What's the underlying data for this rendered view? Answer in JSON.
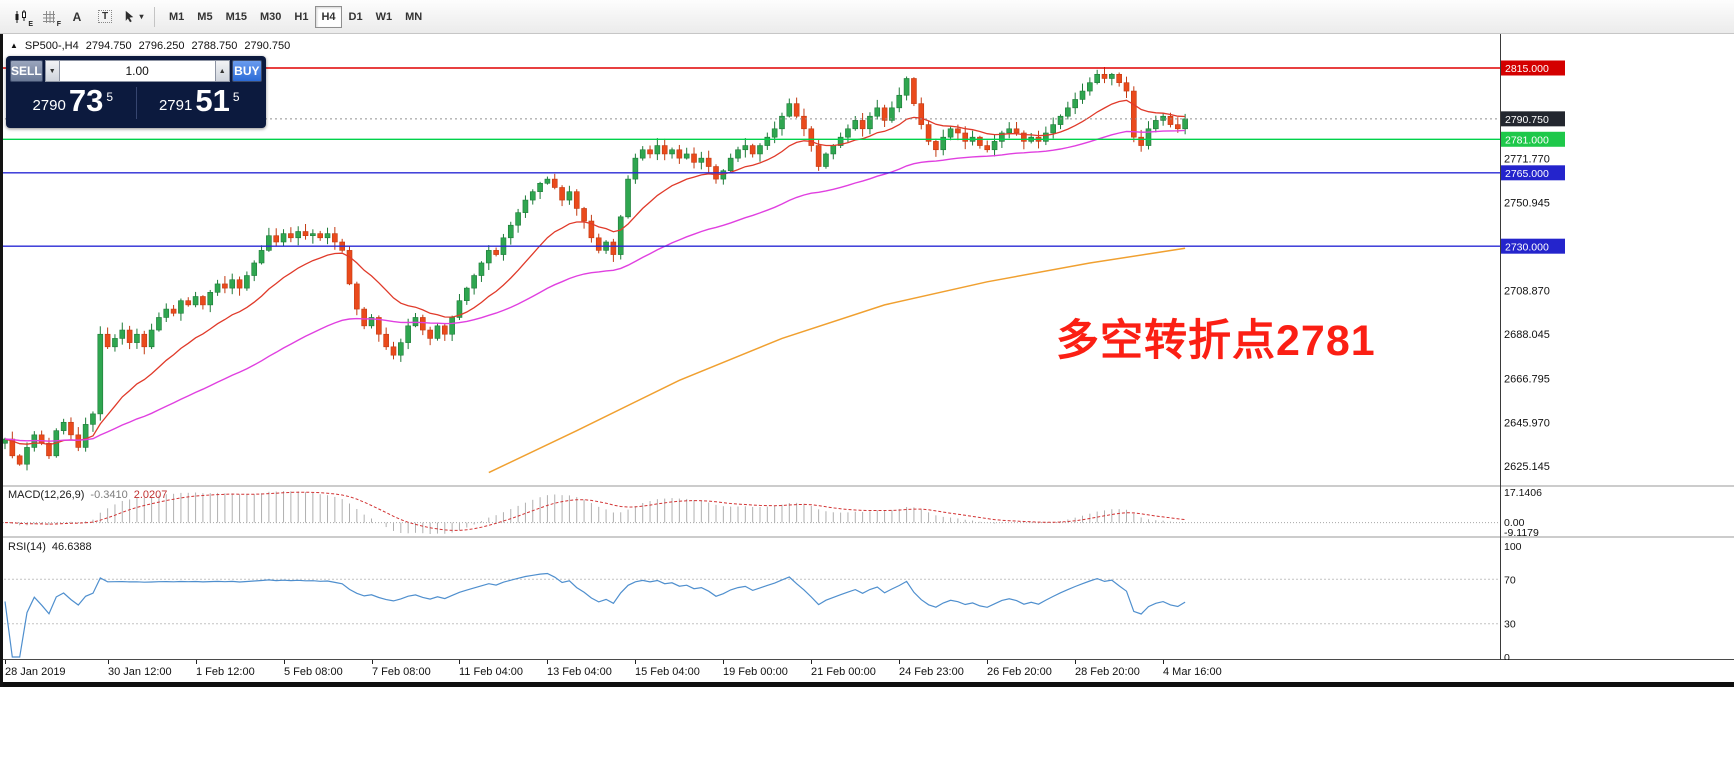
{
  "colors": {
    "sell_button": "#6b7a97",
    "buy_button": "#2b6bd7",
    "panel_bg": "#0c1a3e"
  },
  "toolbar": {
    "icon_subs": [
      "E",
      "F"
    ],
    "letter_a": "A",
    "letter_t": "T",
    "dropdown_caret": "▾",
    "timeframes": [
      "M1",
      "M5",
      "M15",
      "M30",
      "H1",
      "H4",
      "D1",
      "W1",
      "MN"
    ],
    "active_timeframe": "H4"
  },
  "chart_header": {
    "marker": "▲",
    "symbol": "SP500-,H4",
    "open": "2794.750",
    "high": "2796.250",
    "low": "2788.750",
    "close": "2790.750"
  },
  "trade_panel": {
    "sell_label": "SELL",
    "buy_label": "BUY",
    "volume": "1.00",
    "volume_down_icon": "▼",
    "volume_up_icon": "▲",
    "bid": {
      "prefix": "2790",
      "big": "73",
      "sup": "5"
    },
    "ask": {
      "prefix": "2791",
      "big": "51",
      "sup": "5"
    }
  },
  "annotation": {
    "text": "多空转折点2781",
    "color": "#fb1f14"
  },
  "price_axis": {
    "current_price": 2790.75,
    "ticks": [
      {
        "label": "2771.770",
        "price": 2771.77
      },
      {
        "label": "2750.945",
        "price": 2750.945
      },
      {
        "label": "2708.870",
        "price": 2708.87
      },
      {
        "label": "2688.045",
        "price": 2688.045
      },
      {
        "label": "2666.795",
        "price": 2666.795
      },
      {
        "label": "2645.970",
        "price": 2645.97
      },
      {
        "label": "2625.145",
        "price": 2625.145
      }
    ],
    "badges": [
      {
        "label": "2815.000",
        "price": 2815,
        "bg": "#d40000"
      },
      {
        "label": "2790.750",
        "price": 2790.75,
        "bg": "#23272f"
      },
      {
        "label": "2781.000",
        "price": 2781,
        "bg": "#1ec84a"
      },
      {
        "label": "2765.000",
        "price": 2765,
        "bg": "#2424cc"
      },
      {
        "label": "2730.000",
        "price": 2730,
        "bg": "#2424cc"
      }
    ]
  },
  "hlines": [
    {
      "price": 2815,
      "color": "#e00000"
    },
    {
      "price": 2781,
      "color": "#00d24b"
    },
    {
      "price": 2765,
      "color": "#2929d4"
    },
    {
      "price": 2730,
      "color": "#2929d4"
    }
  ],
  "time_axis": {
    "labels": [
      "28 Jan 2019",
      "30 Jan 12:00",
      "1 Feb 12:00",
      "5 Feb 08:00",
      "7 Feb 08:00",
      "11 Feb 04:00",
      "13 Feb 04:00",
      "15 Feb 04:00",
      "19 Feb 00:00",
      "21 Feb 00:00",
      "24 Feb 23:00",
      "26 Feb 20:00",
      "28 Feb 20:00",
      "4 Mar 16:00"
    ],
    "indices": [
      0,
      14,
      26,
      38,
      50,
      62,
      74,
      86,
      98,
      110,
      122,
      134,
      146,
      158
    ]
  },
  "indicators": {
    "macd": {
      "label": "MACD(12,26,9)",
      "value_main": "-0.3410",
      "value_signal": "2.0207",
      "axis_top": "17.1406",
      "axis_zero": "0.00",
      "axis_bottom": "-9.1179",
      "histogram_color": "#b0b0b0",
      "signal_color": "#d23333"
    },
    "rsi": {
      "label": "RSI(14)",
      "value": "46.6388",
      "axis": [
        "100",
        "70",
        "30",
        "0"
      ],
      "levels": [
        70,
        30
      ],
      "color": "#4f8fce"
    }
  },
  "chart_data": {
    "type": "candlestick",
    "title": "SP500- H4",
    "ylim": [
      2625.145,
      2815.0
    ],
    "closes": [
      2638,
      2630,
      2626,
      2634,
      2640,
      2636,
      2630,
      2642,
      2646,
      2640,
      2634,
      2645,
      2650,
      2688,
      2682,
      2686,
      2690,
      2684,
      2688,
      2682,
      2690,
      2696,
      2700,
      2698,
      2704,
      2702,
      2706,
      2702,
      2708,
      2712,
      2710,
      2714,
      2710,
      2716,
      2722,
      2728,
      2735,
      2732,
      2736,
      2734,
      2737,
      2735,
      2736,
      2734,
      2736,
      2732,
      2728,
      2712,
      2700,
      2692,
      2696,
      2688,
      2682,
      2678,
      2684,
      2692,
      2696,
      2690,
      2686,
      2692,
      2688,
      2696,
      2704,
      2710,
      2716,
      2722,
      2728,
      2726,
      2734,
      2740,
      2746,
      2752,
      2756,
      2760,
      2762,
      2758,
      2752,
      2756,
      2748,
      2742,
      2734,
      2728,
      2732,
      2726,
      2744,
      2762,
      2772,
      2776,
      2774,
      2778,
      2774,
      2776,
      2772,
      2774,
      2770,
      2772,
      2768,
      2762,
      2766,
      2772,
      2776,
      2778,
      2774,
      2778,
      2782,
      2786,
      2792,
      2798,
      2792,
      2786,
      2778,
      2768,
      2774,
      2778,
      2782,
      2786,
      2790,
      2786,
      2792,
      2796,
      2790,
      2796,
      2802,
      2810,
      2798,
      2788,
      2780,
      2776,
      2782,
      2786,
      2784,
      2780,
      2782,
      2778,
      2776,
      2780,
      2784,
      2786,
      2784,
      2780,
      2782,
      2780,
      2784,
      2788,
      2792,
      2796,
      2800,
      2804,
      2808,
      2812,
      2810,
      2812,
      2808,
      2804,
      2782,
      2778,
      2786,
      2790,
      2792,
      2788,
      2786,
      2790.75
    ],
    "up_color": "#2fa650",
    "down_color": "#ea4a1c",
    "up_edge": "#1d7a38",
    "down_edge": "#c23a12",
    "ma_fast_color": "#e03a2a",
    "ma_fast_period": 16,
    "ma_mid_color": "#e040e0",
    "ma_mid_period": 55,
    "ma_slow_color": "#f0a030",
    "ma_slow_anchors": [
      [
        66,
        2622
      ],
      [
        78,
        2642
      ],
      [
        92,
        2666
      ],
      [
        106,
        2686
      ],
      [
        120,
        2702
      ],
      [
        134,
        2713
      ],
      [
        148,
        2722
      ],
      [
        161,
        2729
      ]
    ]
  }
}
